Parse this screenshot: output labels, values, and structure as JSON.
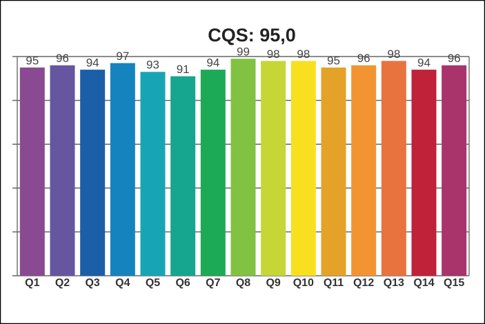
{
  "chart_data": {
    "type": "bar",
    "title": "CQS: 95,0",
    "categories": [
      "Q1",
      "Q2",
      "Q3",
      "Q4",
      "Q5",
      "Q6",
      "Q7",
      "Q8",
      "Q9",
      "Q10",
      "Q11",
      "Q12",
      "Q13",
      "Q14",
      "Q15"
    ],
    "values": [
      95,
      96,
      94,
      97,
      93,
      91,
      94,
      99,
      98,
      98,
      95,
      96,
      98,
      94,
      96
    ],
    "colors": [
      "#8a4a91",
      "#6656a0",
      "#1b5fa8",
      "#1584be",
      "#17a5b5",
      "#16a68f",
      "#1daa56",
      "#82c242",
      "#c6d637",
      "#f8e021",
      "#e5a228",
      "#f39433",
      "#e8733f",
      "#c0223a",
      "#a9336b"
    ],
    "ylim": [
      0,
      100
    ],
    "yticks": [
      0,
      20,
      40,
      60,
      80,
      100
    ],
    "grid": true
  }
}
